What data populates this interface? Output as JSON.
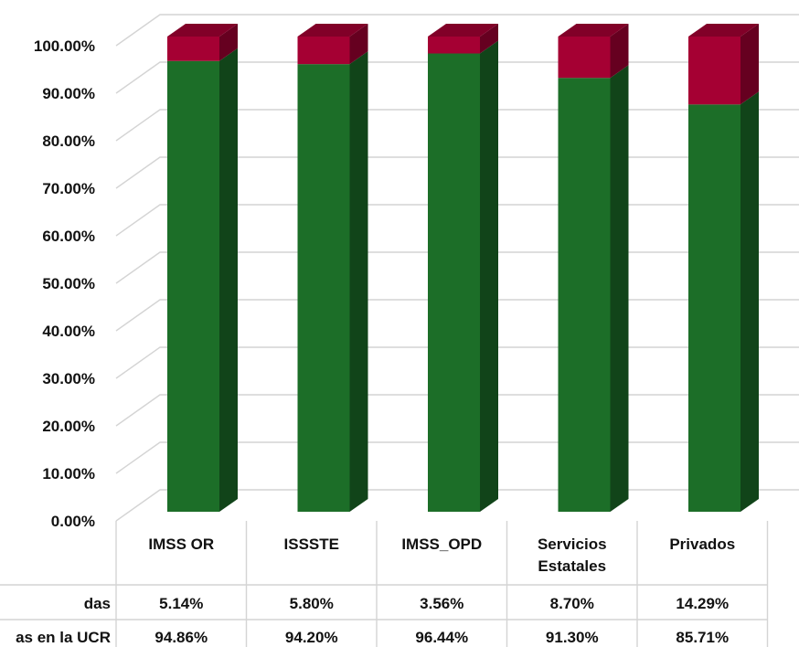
{
  "chart_data": {
    "type": "bar",
    "stacked": true,
    "style": "3d-column",
    "categories": [
      "IMSS OR",
      "ISSSTE",
      "IMSS_OPD",
      "Servicios Estatales",
      "Privados"
    ],
    "category_lines": [
      [
        "IMSS OR"
      ],
      [
        "ISSSTE"
      ],
      [
        "IMSS_OPD"
      ],
      [
        "Servicios",
        "Estatales"
      ],
      [
        "Privados"
      ]
    ],
    "series": [
      {
        "name": "as en la UCR",
        "values": [
          94.86,
          94.2,
          96.44,
          91.3,
          85.71
        ],
        "labels": [
          "94.86%",
          "94.20%",
          "96.44%",
          "91.30%",
          "85.71%"
        ],
        "color": "#1c6e28"
      },
      {
        "name": "das",
        "values": [
          5.14,
          5.8,
          3.56,
          8.7,
          14.29
        ],
        "labels": [
          "5.14%",
          "5.80%",
          "3.56%",
          "8.70%",
          "14.29%"
        ],
        "color": "#a50033"
      }
    ],
    "yticks": [
      "0.00%",
      "10.00%",
      "20.00%",
      "30.00%",
      "40.00%",
      "50.00%",
      "60.00%",
      "70.00%",
      "80.00%",
      "90.00%",
      "100.00%"
    ],
    "ylim": [
      0,
      100
    ],
    "grid": true,
    "data_table": true
  }
}
